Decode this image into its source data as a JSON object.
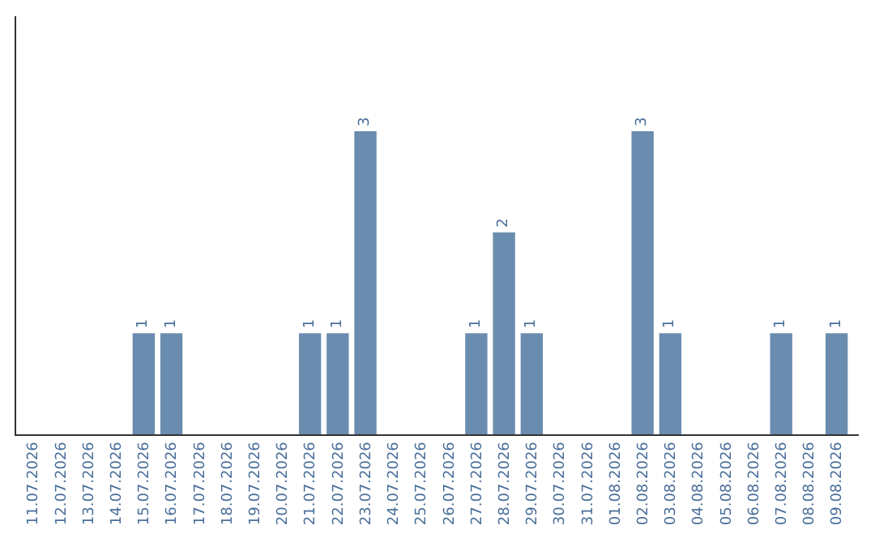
{
  "chart_data": {
    "type": "bar",
    "categories": [
      "11.07.2026",
      "12.07.2026",
      "13.07.2026",
      "14.07.2026",
      "15.07.2026",
      "16.07.2026",
      "17.07.2026",
      "18.07.2026",
      "19.07.2026",
      "20.07.2026",
      "21.07.2026",
      "22.07.2026",
      "23.07.2026",
      "24.07.2026",
      "25.07.2026",
      "26.07.2026",
      "27.07.2026",
      "28.07.2026",
      "29.07.2026",
      "30.07.2026",
      "31.07.2026",
      "01.08.2026",
      "02.08.2026",
      "03.08.2026",
      "04.08.2026",
      "05.08.2026",
      "06.08.2026",
      "07.08.2026",
      "08.08.2026",
      "09.08.2026"
    ],
    "values": [
      0,
      0,
      0,
      0,
      1,
      1,
      0,
      0,
      0,
      0,
      1,
      1,
      3,
      0,
      0,
      0,
      1,
      2,
      1,
      0,
      0,
      0,
      3,
      1,
      0,
      0,
      0,
      1,
      0,
      1
    ],
    "value_labels": [
      null,
      null,
      null,
      null,
      "1",
      "1",
      null,
      null,
      null,
      null,
      "1",
      "1",
      "3",
      null,
      null,
      null,
      "1",
      "2",
      "1",
      null,
      null,
      null,
      "3",
      "1",
      null,
      null,
      null,
      "1",
      null,
      "1"
    ],
    "color": "#6a8caf"
  }
}
